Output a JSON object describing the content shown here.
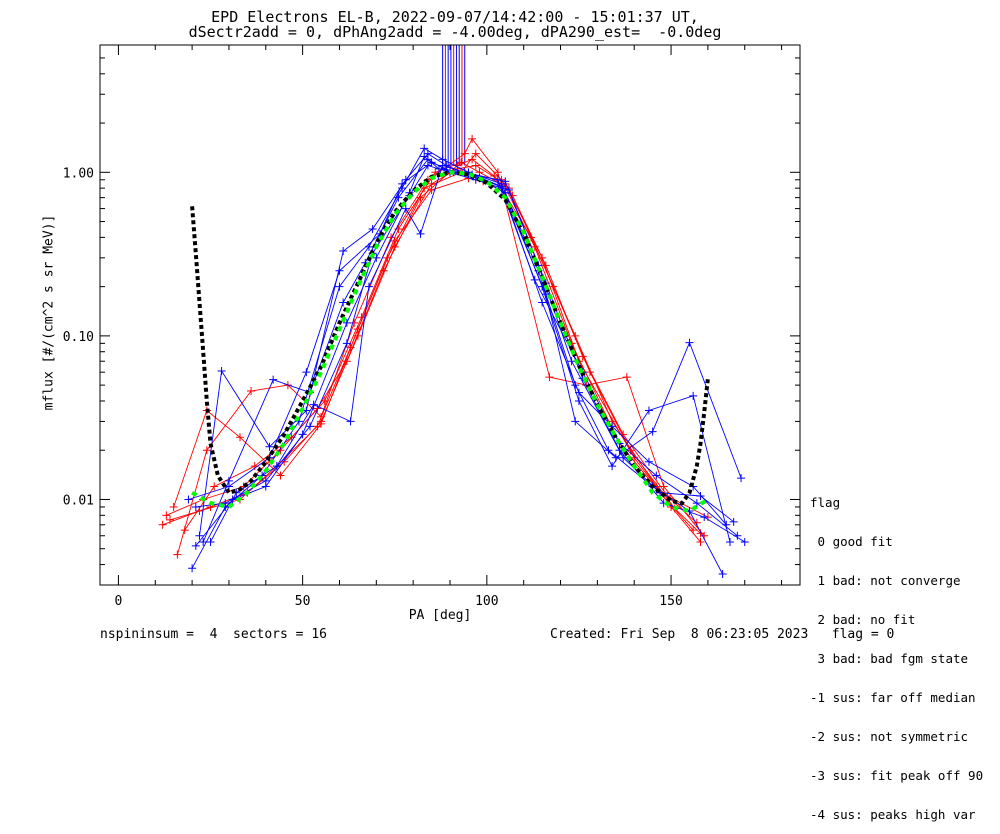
{
  "title_line1": "EPD Electrons EL-B, 2022-09-07/14:42:00 - 15:01:37 UT,",
  "title_line2": "dSectr2add = 0, dPhAng2add = -4.00deg, dPA290_est=  -0.0deg",
  "footer": {
    "left": "nspininsum =  4  sectors = 16",
    "right": "Created: Fri Sep  8 06:23:05 2023   flag = 0"
  },
  "legend": {
    "title": "flag",
    "items": [
      " 0 good fit",
      " 1 bad: not converge",
      " 2 bad: no fit",
      " 3 bad: bad fgm state",
      "-1 sus: far off median",
      "-2 sus: not symmetric",
      "-3 sus: fit peak off 90",
      "-4 sus: peaks high var"
    ]
  },
  "colors": {
    "red": "#ff0000",
    "blue": "#0000ff",
    "black": "#000000",
    "green": "#00ff00"
  },
  "chart_data": {
    "type": "line",
    "xlabel": "PA [deg]",
    "ylabel": "mflux [#/(cm^2 s sr MeV)]",
    "xlim": [
      -5,
      185
    ],
    "ylim": [
      0.003,
      6.0
    ],
    "yscale": "log",
    "xticks": [
      0,
      50,
      100,
      150
    ],
    "yticks": [
      0.01,
      0.1,
      1.0
    ],
    "ytick_labels": [
      "0.01",
      "0.10",
      "1.00"
    ],
    "fit_curve_green": {
      "x": [
        20,
        25,
        30,
        35,
        40,
        45,
        50,
        55,
        60,
        65,
        70,
        75,
        80,
        85,
        90,
        95,
        100,
        105,
        110,
        115,
        120,
        125,
        130,
        135,
        140,
        145,
        150,
        155,
        160
      ],
      "y": [
        0.011,
        0.0095,
        0.009,
        0.011,
        0.015,
        0.022,
        0.036,
        0.06,
        0.11,
        0.2,
        0.35,
        0.55,
        0.75,
        0.92,
        1.0,
        0.98,
        0.88,
        0.7,
        0.43,
        0.23,
        0.12,
        0.065,
        0.038,
        0.024,
        0.016,
        0.011,
        0.009,
        0.0085,
        0.01
      ]
    },
    "fit_curve_black": {
      "x": [
        20,
        21,
        22,
        23,
        24,
        25,
        27,
        30,
        33,
        36,
        40,
        45,
        50,
        55,
        60,
        65,
        70,
        75,
        80,
        85,
        90,
        95,
        100,
        105,
        110,
        115,
        120,
        125,
        130,
        135,
        140,
        145,
        150,
        153,
        155,
        157,
        158,
        159,
        160
      ],
      "y": [
        0.62,
        0.32,
        0.16,
        0.08,
        0.04,
        0.022,
        0.014,
        0.011,
        0.0115,
        0.013,
        0.017,
        0.025,
        0.04,
        0.065,
        0.12,
        0.21,
        0.37,
        0.57,
        0.77,
        0.94,
        1.0,
        0.97,
        0.86,
        0.68,
        0.42,
        0.23,
        0.12,
        0.066,
        0.038,
        0.024,
        0.016,
        0.012,
        0.0098,
        0.0095,
        0.011,
        0.016,
        0.022,
        0.034,
        0.055
      ]
    },
    "series": [
      {
        "color": "red",
        "x": [
          12,
          25,
          35,
          45,
          55,
          65,
          75,
          85,
          92,
          97,
          105,
          115,
          125,
          140,
          150,
          158
        ],
        "y": [
          0.007,
          0.009,
          0.011,
          0.017,
          0.03,
          0.1,
          0.35,
          0.85,
          1.05,
          1.1,
          0.85,
          0.3,
          0.07,
          0.018,
          0.009,
          0.0055
        ]
      },
      {
        "color": "red",
        "x": [
          14,
          22,
          33,
          43,
          54,
          63,
          73,
          83,
          93,
          97,
          104,
          113,
          123,
          136,
          147,
          156
        ],
        "y": [
          0.0075,
          0.0085,
          0.01,
          0.016,
          0.028,
          0.085,
          0.3,
          0.8,
          1.0,
          1.3,
          0.9,
          0.35,
          0.09,
          0.022,
          0.011,
          0.0065
        ]
      },
      {
        "color": "red",
        "x": [
          16,
          24,
          36,
          46,
          55,
          64,
          74,
          84,
          94,
          96,
          103,
          117,
          127,
          138,
          148,
          159
        ],
        "y": [
          0.0046,
          0.02,
          0.046,
          0.05,
          0.032,
          0.12,
          0.4,
          0.9,
          1.3,
          1.6,
          1.0,
          0.056,
          0.05,
          0.056,
          0.012,
          0.006
        ]
      },
      {
        "color": "red",
        "x": [
          13,
          23,
          34,
          44,
          54,
          62,
          72,
          82,
          92,
          96,
          102,
          112,
          124,
          134,
          146,
          157
        ],
        "y": [
          0.008,
          0.01,
          0.012,
          0.02,
          0.036,
          0.07,
          0.25,
          0.7,
          1.1,
          1.2,
          0.95,
          0.4,
          0.1,
          0.03,
          0.012,
          0.0072
        ]
      },
      {
        "color": "red",
        "x": [
          18,
          26,
          37,
          47,
          56,
          66,
          76,
          86,
          93,
          98,
          106,
          116,
          126,
          137,
          149,
          160
        ],
        "y": [
          0.0065,
          0.012,
          0.016,
          0.024,
          0.04,
          0.13,
          0.45,
          1.0,
          1.15,
          1.0,
          0.8,
          0.27,
          0.075,
          0.025,
          0.0105,
          0.0078
        ]
      },
      {
        "color": "red",
        "x": [
          15,
          24,
          33,
          44,
          55,
          65,
          75,
          85,
          95,
          99,
          107,
          118,
          128,
          139,
          151,
          158
        ],
        "y": [
          0.009,
          0.035,
          0.024,
          0.014,
          0.029,
          0.11,
          0.38,
          0.78,
          0.92,
          0.88,
          0.72,
          0.2,
          0.06,
          0.02,
          0.0088,
          0.0062
        ]
      },
      {
        "color": "blue",
        "x": [
          20,
          29,
          39,
          49,
          60,
          68,
          77,
          83,
          88,
          95,
          104,
          114,
          124,
          133,
          145,
          155,
          164
        ],
        "y": [
          0.0038,
          0.009,
          0.014,
          0.03,
          0.2,
          0.35,
          0.8,
          1.4,
          1.2,
          1.0,
          0.85,
          0.25,
          0.05,
          0.02,
          0.012,
          0.0085,
          0.0035
        ]
      },
      {
        "color": "blue",
        "x": [
          22,
          28,
          41,
          51,
          61,
          69,
          78,
          84,
          89,
          96,
          105,
          115,
          125,
          134,
          144,
          156,
          166
        ],
        "y": [
          0.006,
          0.061,
          0.021,
          0.035,
          0.33,
          0.45,
          0.9,
          1.3,
          1.1,
          0.95,
          0.75,
          0.2,
          0.04,
          0.016,
          0.035,
          0.043,
          0.0055
        ]
      },
      {
        "color": "blue",
        "x": [
          23,
          30,
          42,
          52,
          61,
          67,
          76,
          84,
          90,
          97,
          104,
          116,
          124,
          135,
          145,
          155,
          169
        ],
        "y": [
          0.0055,
          0.013,
          0.054,
          0.045,
          0.16,
          0.28,
          0.7,
          1.2,
          1.0,
          0.9,
          0.8,
          0.18,
          0.03,
          0.018,
          0.026,
          0.091,
          0.0135
        ]
      },
      {
        "color": "blue",
        "x": [
          21,
          31,
          40,
          50,
          62,
          70,
          79,
          83,
          87,
          94,
          103,
          113,
          126,
          136,
          146,
          157,
          168
        ],
        "y": [
          0.0052,
          0.01,
          0.012,
          0.025,
          0.12,
          0.3,
          0.75,
          1.25,
          1.05,
          1.0,
          0.9,
          0.22,
          0.06,
          0.022,
          0.014,
          0.0095,
          0.006
        ]
      },
      {
        "color": "blue",
        "x": [
          25,
          32,
          43,
          53,
          63,
          68,
          78,
          82,
          88,
          95,
          105,
          114,
          123,
          137,
          147,
          158,
          167
        ],
        "y": [
          0.0055,
          0.011,
          0.016,
          0.038,
          0.03,
          0.2,
          0.6,
          0.42,
          1.1,
          0.98,
          0.88,
          0.27,
          0.07,
          0.018,
          0.011,
          0.0105,
          0.0073
        ]
      },
      {
        "color": "blue",
        "x": [
          19,
          30,
          41,
          51,
          60,
          71,
          77,
          85,
          91,
          96,
          104,
          115,
          125,
          134,
          144,
          156,
          165
        ],
        "y": [
          0.01,
          0.012,
          0.018,
          0.06,
          0.25,
          0.42,
          0.85,
          1.15,
          1.0,
          0.97,
          0.82,
          0.16,
          0.045,
          0.028,
          0.017,
          0.012,
          0.007
        ]
      },
      {
        "color": "blue",
        "x": [
          21,
          29,
          40,
          52,
          62,
          69,
          79,
          84,
          90,
          98,
          106,
          116,
          126,
          136,
          148,
          159,
          170
        ],
        "y": [
          0.009,
          0.0095,
          0.013,
          0.028,
          0.09,
          0.32,
          0.72,
          1.1,
          1.0,
          0.92,
          0.78,
          0.21,
          0.055,
          0.02,
          0.0095,
          0.0078,
          0.0055
        ]
      }
    ],
    "spike_region": {
      "x": [
        88,
        94
      ],
      "y": [
        1.1,
        6.0
      ]
    }
  }
}
